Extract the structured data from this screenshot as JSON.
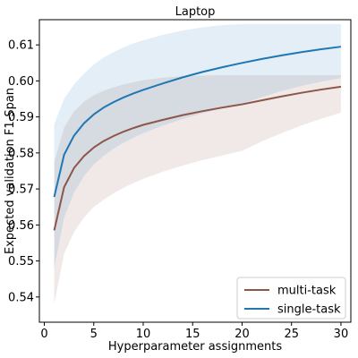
{
  "chart_data": {
    "type": "line",
    "title": "Laptop",
    "xlabel": "Hyperparameter assignments",
    "ylabel": "Expected validation F1-Span",
    "xlim": [
      -0.5,
      31.0
    ],
    "ylim": [
      0.533,
      0.617
    ],
    "xticks": [
      0,
      5,
      10,
      15,
      20,
      25,
      30
    ],
    "yticks": [
      0.54,
      0.55,
      0.56,
      0.57,
      0.58,
      0.59,
      0.6,
      0.61
    ],
    "ytick_labels": [
      "0.54",
      "0.55",
      "0.56",
      "0.57",
      "0.58",
      "0.59",
      "0.60",
      "0.61"
    ],
    "grid": false,
    "legend_position": "lower-right",
    "series": [
      {
        "name": "multi-task",
        "color": "#8c564b",
        "x": [
          1,
          2,
          3,
          4,
          5,
          6,
          7,
          8,
          9,
          10,
          12,
          14,
          16,
          18,
          20,
          22,
          24,
          26,
          28,
          30
        ],
        "y": [
          0.5585,
          0.5705,
          0.5758,
          0.5791,
          0.5815,
          0.5833,
          0.5847,
          0.5859,
          0.5869,
          0.5878,
          0.5892,
          0.5905,
          0.5916,
          0.5926,
          0.5935,
          0.5946,
          0.5957,
          0.5967,
          0.5976,
          0.5984
        ],
        "upper": [
          0.5775,
          0.587,
          0.5915,
          0.5942,
          0.596,
          0.5973,
          0.5982,
          0.599,
          0.5996,
          0.6002,
          0.6009,
          0.6013,
          0.6015,
          0.6016,
          0.6016,
          0.6016,
          0.6016,
          0.6016,
          0.6016,
          0.6016
        ],
        "lower": [
          0.538,
          0.552,
          0.558,
          0.562,
          0.565,
          0.567,
          0.5688,
          0.5703,
          0.5716,
          0.5728,
          0.5748,
          0.5765,
          0.578,
          0.5793,
          0.5806,
          0.5832,
          0.5855,
          0.5876,
          0.5895,
          0.5912
        ]
      },
      {
        "name": "single-task",
        "color": "#1f77b4",
        "x": [
          1,
          2,
          3,
          4,
          5,
          6,
          7,
          8,
          9,
          10,
          12,
          14,
          16,
          18,
          20,
          22,
          24,
          26,
          28,
          30
        ],
        "y": [
          0.5678,
          0.5795,
          0.5848,
          0.5882,
          0.5907,
          0.5926,
          0.5941,
          0.5954,
          0.5965,
          0.5975,
          0.5993,
          0.601,
          0.6025,
          0.6038,
          0.605,
          0.6061,
          0.6071,
          0.608,
          0.6088,
          0.6095
        ],
        "upper": [
          0.588,
          0.595,
          0.599,
          0.602,
          0.6045,
          0.6065,
          0.608,
          0.6093,
          0.6104,
          0.6113,
          0.6128,
          0.614,
          0.6149,
          0.6155,
          0.6158,
          0.6158,
          0.6158,
          0.6158,
          0.6158,
          0.6158
        ],
        "lower": [
          0.548,
          0.562,
          0.569,
          0.5735,
          0.5768,
          0.5792,
          0.5812,
          0.5828,
          0.5842,
          0.5855,
          0.5876,
          0.5894,
          0.591,
          0.5924,
          0.5936,
          0.5955,
          0.5972,
          0.5986,
          0.5998,
          0.6008
        ]
      }
    ]
  }
}
